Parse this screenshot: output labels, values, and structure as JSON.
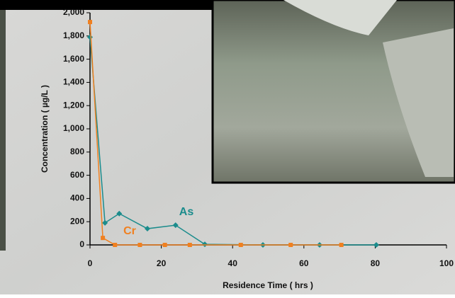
{
  "chart_data": {
    "type": "line",
    "x_label": "Residence Time ( hrs )",
    "y_label": "Concentration ( µg/L )",
    "xlim": [
      0,
      100
    ],
    "xticks": [
      0,
      20,
      40,
      60,
      80,
      100
    ],
    "ylim": [
      0,
      2000
    ],
    "yticks": [
      0,
      200,
      400,
      600,
      800,
      {
        "value": 1000,
        "label": "1,000"
      },
      {
        "value": 1200,
        "label": "1,200"
      },
      {
        "value": 1400,
        "label": "1,400"
      },
      {
        "value": 1600,
        "label": "1,600"
      },
      {
        "value": 1800,
        "label": "1,800"
      },
      {
        "value": 2000,
        "label": "2,000"
      }
    ],
    "series": [
      {
        "name": "As",
        "color": "#1b8c8c",
        "marker": "diamond",
        "x": [
          0,
          4.2,
          8.2,
          16.1,
          24,
          32.2,
          48.5,
          64.4,
          80.3
        ],
        "values": [
          1790,
          190,
          270,
          140,
          170,
          5,
          0,
          0,
          0
        ]
      },
      {
        "name": "Cr",
        "color": "#f08020",
        "marker": "square",
        "x": [
          0,
          3.6,
          7,
          14,
          21,
          28,
          42.3,
          56.3,
          70.5
        ],
        "values": [
          1920,
          60,
          0,
          0,
          0,
          0,
          0,
          0,
          0
        ]
      }
    ]
  }
}
